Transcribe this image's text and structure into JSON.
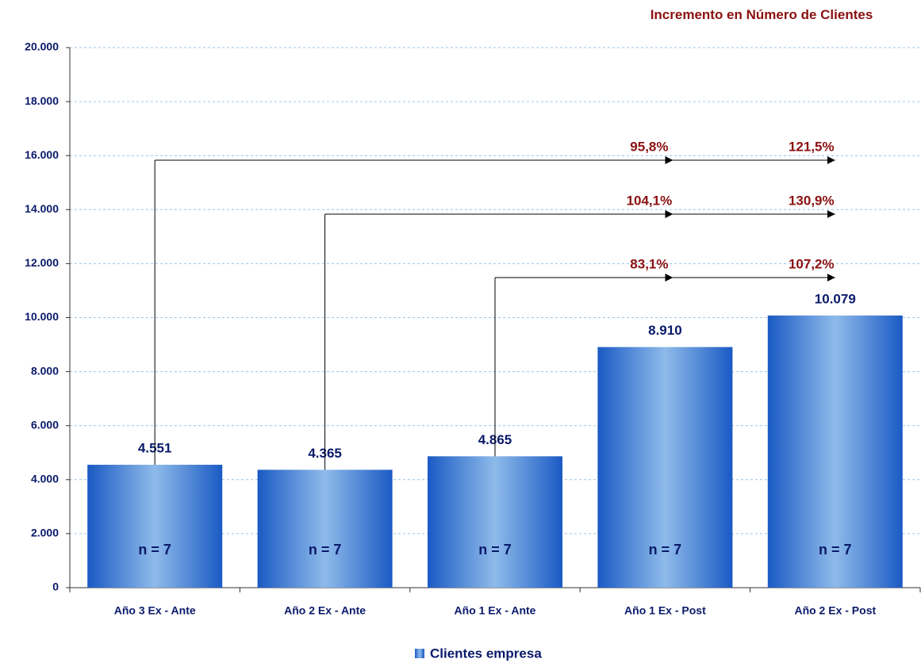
{
  "chart_data": {
    "type": "bar",
    "title": "Incremento en Número de Clientes",
    "categories": [
      "Año 3 Ex - Ante",
      "Año 2 Ex - Ante",
      "Año 1 Ex - Ante",
      "Año 1 Ex - Post",
      "Año 2 Ex - Post"
    ],
    "series": [
      {
        "name": "Clientes empresa",
        "color": "#1f63c9",
        "values": [
          4551,
          4365,
          4865,
          8910,
          10079
        ],
        "value_labels": [
          "4.551",
          "4.365",
          "4.865",
          "8.910",
          "10.079"
        ]
      }
    ],
    "bar_texts": [
      "n = 7",
      "n = 7",
      "n = 7",
      "n = 7",
      "n = 7"
    ],
    "annotations": [
      {
        "from": 0,
        "labels": [
          "95,8%",
          "121,5%"
        ]
      },
      {
        "from": 1,
        "labels": [
          "104,1%",
          "130,9%"
        ]
      },
      {
        "from": 2,
        "labels": [
          "83,1%",
          "107,2%"
        ]
      }
    ],
    "ylim": [
      0,
      20000
    ],
    "yticks": [
      0,
      {
        "value": 2000,
        "label": "2.000"
      },
      {
        "value": 4000,
        "label": "4.000"
      },
      {
        "value": 6000,
        "label": "6.000"
      },
      {
        "value": 8000,
        "label": "8.000"
      },
      {
        "value": 10000,
        "label": "10.000"
      },
      {
        "value": 12000,
        "label": "12.000"
      },
      {
        "value": 14000,
        "label": "14.000"
      },
      {
        "value": 16000,
        "label": "16.000"
      },
      {
        "value": 18000,
        "label": "18.000"
      },
      {
        "value": 20000,
        "label": "20.000"
      }
    ],
    "grid": true,
    "legend": "bottom"
  }
}
